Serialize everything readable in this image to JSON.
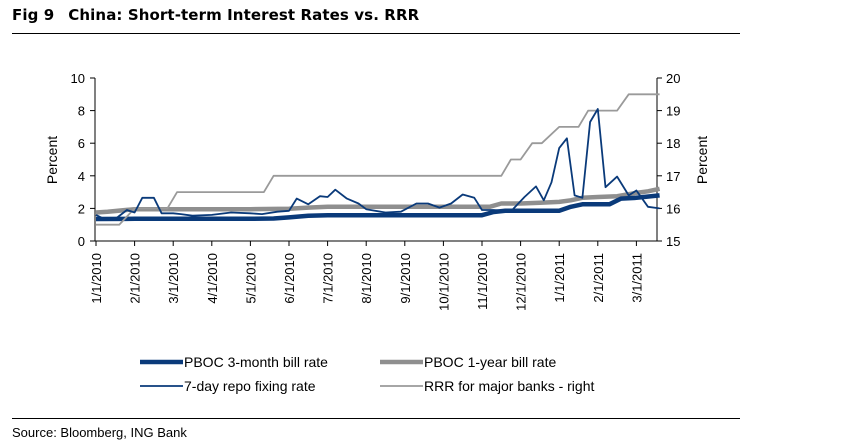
{
  "figure": {
    "number": "Fig 9",
    "title": "China: Short-term Interest Rates vs. RRR",
    "source": "Source: Bloomberg, ING Bank"
  },
  "chart_data": {
    "type": "line",
    "title": "China: Short-term Interest Rates vs. RRR",
    "xlabel": "",
    "ylabel": "Percent",
    "ylabel_right": "Percent",
    "ylim": [
      0,
      10
    ],
    "ylim_right": [
      15,
      20
    ],
    "yticks": [
      0,
      2,
      4,
      6,
      8,
      10
    ],
    "yticks_right": [
      15,
      16,
      17,
      18,
      19,
      20
    ],
    "xlim": [
      0,
      14.6
    ],
    "x_tick_labels": [
      "1/1/2010",
      "2/1/2010",
      "3/1/2010",
      "4/1/2010",
      "5/1/2010",
      "6/1/2010",
      "7/1/2010",
      "8/1/2010",
      "9/1/2010",
      "10/1/2010",
      "11/1/2010",
      "12/1/2010",
      "1/1/2011",
      "2/1/2011",
      "3/1/2011"
    ],
    "x_unit": "months since 1/1/2010",
    "grid": false,
    "legend_position": "bottom",
    "series": [
      {
        "name": "PBOC 3-month bill rate",
        "axis": "left",
        "color": "#0a3a7a",
        "style": "thick",
        "x": [
          0,
          1,
          2,
          3,
          4,
          4.6,
          5,
          5.5,
          6,
          7,
          8,
          9,
          10,
          10.3,
          10.6,
          11,
          11.6,
          12,
          12.3,
          12.6,
          13,
          13.3,
          13.6,
          14,
          14.6
        ],
        "y": [
          1.35,
          1.36,
          1.36,
          1.36,
          1.36,
          1.38,
          1.45,
          1.55,
          1.58,
          1.58,
          1.58,
          1.58,
          1.58,
          1.78,
          1.85,
          1.85,
          1.85,
          1.85,
          2.1,
          2.25,
          2.25,
          2.25,
          2.6,
          2.65,
          2.8
        ]
      },
      {
        "name": "PBOC 1-year bill rate",
        "axis": "left",
        "color": "#8f8f8f",
        "style": "thick",
        "x": [
          0,
          0.3,
          1,
          2,
          3,
          4,
          5,
          5.5,
          6,
          7,
          8,
          9,
          10,
          10.2,
          10.5,
          11,
          11.5,
          12,
          12.3,
          12.6,
          13,
          13.5,
          14,
          14.3,
          14.6
        ],
        "y": [
          1.75,
          1.8,
          1.95,
          1.95,
          1.95,
          1.95,
          1.98,
          2.05,
          2.1,
          2.1,
          2.1,
          2.1,
          2.1,
          2.1,
          2.3,
          2.3,
          2.35,
          2.4,
          2.5,
          2.65,
          2.7,
          2.75,
          2.95,
          3.05,
          3.2
        ]
      },
      {
        "name": "7-day repo fixing rate",
        "axis": "left",
        "color": "#0a3a7a",
        "style": "thin",
        "x": [
          0,
          0.25,
          0.5,
          0.8,
          1.0,
          1.2,
          1.5,
          1.7,
          2.0,
          2.2,
          2.5,
          3.0,
          3.5,
          4.0,
          4.3,
          4.7,
          5.0,
          5.2,
          5.5,
          5.8,
          6.0,
          6.2,
          6.5,
          6.8,
          7.0,
          7.5,
          7.9,
          8.3,
          8.6,
          8.9,
          9.2,
          9.5,
          9.8,
          10.0,
          10.3,
          10.6,
          10.8,
          11.1,
          11.4,
          11.6,
          11.8,
          12.0,
          12.2,
          12.4,
          12.6,
          12.8,
          13.0,
          13.2,
          13.5,
          13.8,
          14.0,
          14.3,
          14.6
        ],
        "y": [
          1.6,
          1.3,
          1.35,
          1.9,
          1.75,
          2.65,
          2.65,
          1.7,
          1.7,
          1.65,
          1.55,
          1.6,
          1.75,
          1.7,
          1.65,
          1.8,
          1.85,
          2.6,
          2.25,
          2.75,
          2.7,
          3.15,
          2.6,
          2.3,
          1.95,
          1.75,
          1.8,
          2.3,
          2.3,
          2.05,
          2.3,
          2.85,
          2.65,
          1.9,
          1.9,
          1.85,
          1.95,
          2.7,
          3.35,
          2.5,
          3.6,
          5.7,
          6.3,
          2.8,
          2.65,
          7.3,
          8.1,
          3.3,
          3.95,
          2.8,
          3.1,
          2.1,
          2.0
        ]
      },
      {
        "name": "RRR for major banks - right",
        "axis": "right",
        "color": "#9a9a9a",
        "style": "thin",
        "x": [
          0,
          0.6,
          1.0,
          1.85,
          2.1,
          4.35,
          4.6,
          10.5,
          10.75,
          11.0,
          11.3,
          11.55,
          12.0,
          12.5,
          12.75,
          13.5,
          13.8,
          14.6
        ],
        "y": [
          15.5,
          15.5,
          16.0,
          16.0,
          16.5,
          16.5,
          17.0,
          17.0,
          17.5,
          17.5,
          18.0,
          18.0,
          18.5,
          18.5,
          19.0,
          19.0,
          19.5,
          19.5
        ]
      }
    ]
  }
}
